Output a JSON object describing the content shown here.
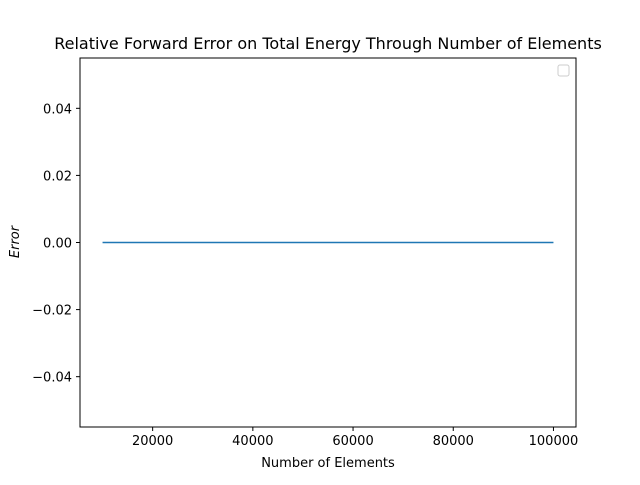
{
  "chart_data": {
    "type": "line",
    "title": "Relative Forward Error on Total Energy Through Number of Elements",
    "xlabel": "Number of Elements",
    "ylabel": "Error",
    "xlim": [
      5500,
      104500
    ],
    "ylim": [
      -0.055,
      0.055
    ],
    "xticks": [
      20000,
      40000,
      60000,
      80000,
      100000
    ],
    "xtick_labels": [
      "20000",
      "40000",
      "60000",
      "80000",
      "100000"
    ],
    "yticks": [
      -0.04,
      -0.02,
      0.0,
      0.02,
      0.04
    ],
    "ytick_labels": [
      "−0.04",
      "−0.02",
      "0.00",
      "0.02",
      "0.04"
    ],
    "grid": false,
    "legend": {
      "placement": "top-right",
      "entries": []
    },
    "series": [
      {
        "color": "#1f77b4",
        "x": [
          10000,
          100000
        ],
        "y": [
          0.0,
          0.0
        ]
      }
    ]
  }
}
